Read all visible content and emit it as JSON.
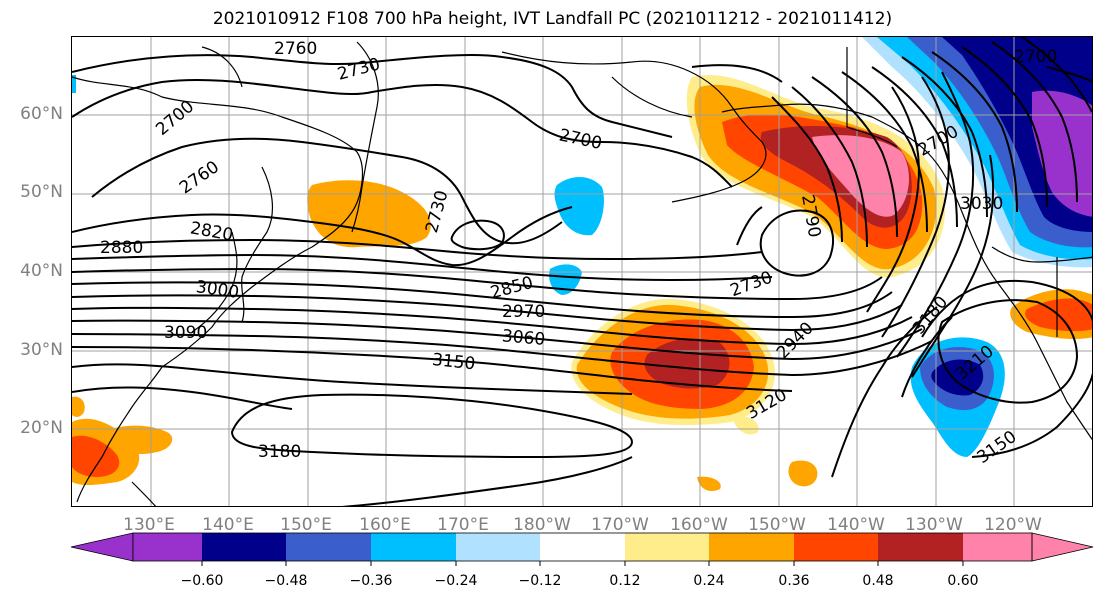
{
  "title": "2021010912 F108 700 hPa height, IVT Landfall PC (2021011212 - 2021011412)",
  "lat_labels": [
    "60°N",
    "50°N",
    "40°N",
    "30°N",
    "20°N"
  ],
  "lon_labels": [
    "130°E",
    "140°E",
    "150°E",
    "160°E",
    "170°E",
    "180°W",
    "170°W",
    "160°W",
    "150°W",
    "140°W",
    "130°W",
    "120°W"
  ],
  "contour_labels": {
    "c2760a": "2760",
    "c2730a": "2730",
    "c2700a": "2700",
    "c2760b": "2760",
    "c2700b": "2700",
    "c2730b": "2730",
    "c2820": "2820",
    "c2880": "2880",
    "c3000": "3000",
    "c3090": "3090",
    "c2850": "2850",
    "c2970": "2970",
    "c3060": "3060",
    "c3150a": "3150",
    "c3180a": "3180",
    "c2730c": "2730",
    "c2790": "2790",
    "c2940": "2940",
    "c3120": "3120",
    "c3180b": "3180",
    "c3210": "3210",
    "c3150b": "3150",
    "c3030": "3030",
    "c2700c": "2700",
    "c2700d": "2700"
  },
  "colorbar": {
    "ticks": [
      "−0.60",
      "−0.48",
      "−0.36",
      "−0.24",
      "−0.12",
      "0.12",
      "0.24",
      "0.36",
      "0.48",
      "0.60"
    ],
    "colors": [
      "#9932cc",
      "#00008b",
      "#3a5fcd",
      "#00bfff",
      "#b0e2ff",
      "#ffffff",
      "#ffec8b",
      "#ffa500",
      "#ff4500",
      "#b22222",
      "#ff82ab"
    ]
  },
  "chart_data": {
    "type": "heatmap",
    "variable": "IVT Landfall PC",
    "contour_field": "700 hPa height",
    "contour_levels_labeled": [
      2700,
      2730,
      2760,
      2790,
      2820,
      2850,
      2880,
      2940,
      2970,
      3000,
      3030,
      3060,
      3090,
      3120,
      3150,
      3180,
      3210
    ],
    "color_levels": [
      -0.6,
      -0.48,
      -0.36,
      -0.24,
      -0.12,
      0.12,
      0.24,
      0.36,
      0.48,
      0.6
    ],
    "lon_range": [
      "120°E",
      "110°W"
    ],
    "lat_range": [
      "10°N",
      "70°N"
    ],
    "grid": true
  }
}
